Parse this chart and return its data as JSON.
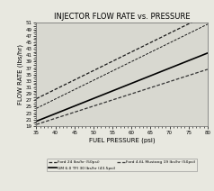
{
  "title": "INJECTOR FLOW RATE vs. PRESSURE",
  "xlabel": "FUEL PRESSURE (psi)",
  "ylabel": "FLOW RATE (lbs/hr)",
  "xlim": [
    35,
    80
  ],
  "ylim": [
    19,
    51
  ],
  "xticks": [
    35,
    40,
    45,
    50,
    55,
    60,
    65,
    70,
    75,
    80
  ],
  "series": [
    {
      "label": "Ford 24 lbs/hr (50psi)",
      "linestyle": "dashdot",
      "color": "#1a1a1a",
      "linewidth": 0.9,
      "y0": 27.5,
      "slope": 0.58
    },
    {
      "label": "GM 6.0 TFI 30 lbs/hr (43.5psi)",
      "linestyle": "solid",
      "color": "#000000",
      "linewidth": 1.2,
      "y0": 20.5,
      "slope": 0.47
    },
    {
      "label": "Ford 4.6L Mustang 19 lbs/hr (50psi)",
      "linestyle": "dashdot",
      "color": "#333333",
      "linewidth": 0.9,
      "y0": 19.5,
      "slope": 0.38
    }
  ],
  "background_color": "#e8e8e0",
  "plot_bg": "#d8d8d0",
  "legend": [
    {
      "label": "Ford 24 lbs/hr (50psi)",
      "linestyle": "dashdot",
      "col": 0
    },
    {
      "label": "GM 6.0 TFI 30 lbs/hr (43.5psi)",
      "linestyle": "solid",
      "col": 1
    },
    {
      "label": "Ford 4.6L Mustang 19 lbs/hr (50psi)",
      "linestyle": "dashdot",
      "col": 0
    }
  ]
}
